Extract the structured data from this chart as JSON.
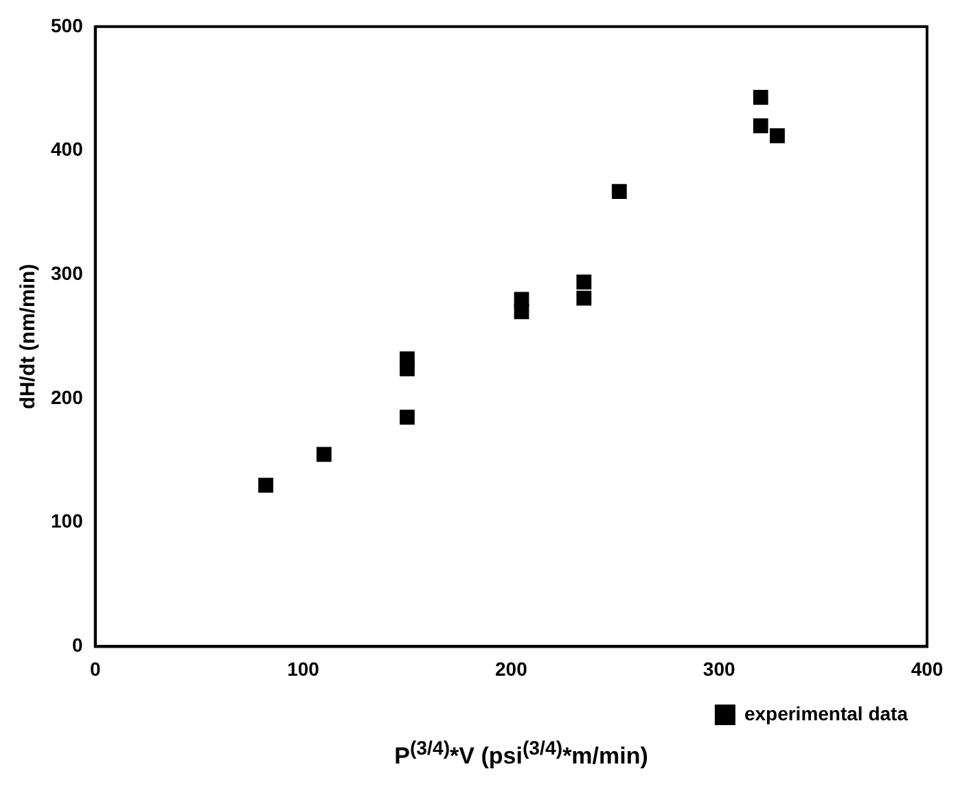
{
  "chart_data": {
    "type": "scatter",
    "xlabel": "P$^{(3/4)}$*V (psi$^{(3/4)}$*m/min)",
    "ylabel": "dH/dt (nm/min)",
    "xlim": [
      0,
      400
    ],
    "xticks": [
      0,
      100,
      200,
      300,
      400
    ],
    "ylim": [
      0,
      500
    ],
    "yticks": [
      0,
      100,
      200,
      300,
      400,
      500
    ],
    "grid": false,
    "legend": "bottom right",
    "marker": "square",
    "series": [
      {
        "name": "experimental data",
        "color": "#000000",
        "x": [
          82,
          110,
          150,
          150,
          150,
          205,
          205,
          235,
          235,
          252,
          320,
          320,
          328
        ],
        "values": [
          130,
          155,
          185,
          224,
          232,
          270,
          280,
          281,
          294,
          367,
          420,
          443,
          412
        ]
      }
    ]
  }
}
